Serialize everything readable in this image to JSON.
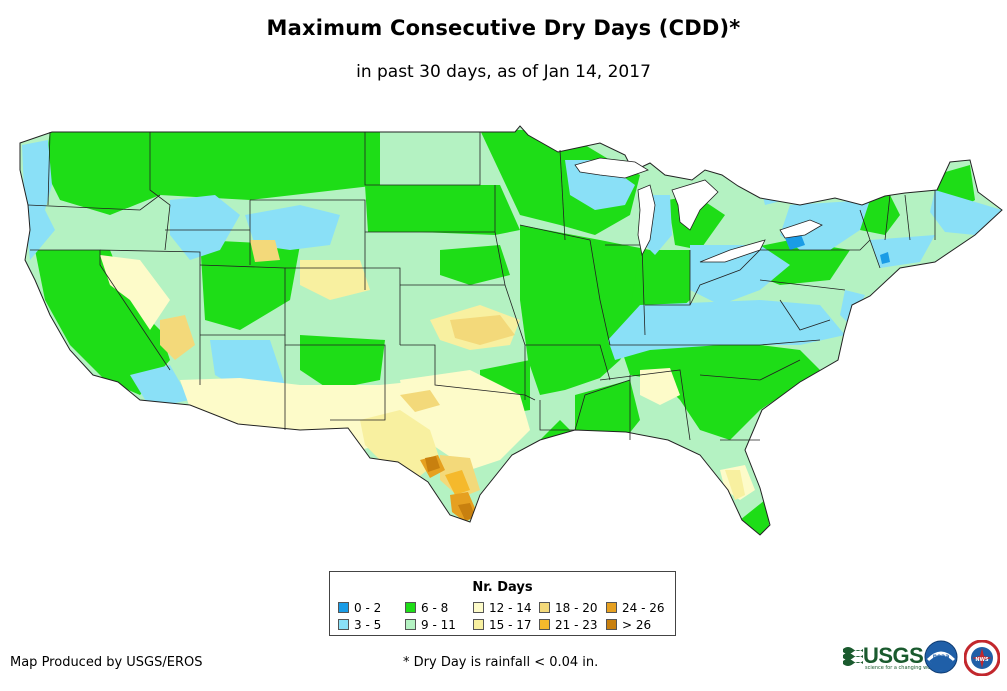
{
  "map": {
    "title": "Maximum Consecutive Dry Days (CDD)*",
    "subtitle": "in past 30 days, as of Jan 14, 2017",
    "region": "Contiguous United States",
    "variable": "Number of consecutive dry days"
  },
  "legend": {
    "title": "Nr. Days",
    "classes": [
      {
        "label": "0 - 2",
        "color": "#1a9ce6"
      },
      {
        "label": "3 - 5",
        "color": "#8ae0f7"
      },
      {
        "label": "6 - 8",
        "color": "#1edd17"
      },
      {
        "label": "9 - 11",
        "color": "#b4f2c2"
      },
      {
        "label": "12 - 14",
        "color": "#fdfbc9"
      },
      {
        "label": "15 - 17",
        "color": "#f8f0a0"
      },
      {
        "label": "18 - 20",
        "color": "#f3d97a"
      },
      {
        "label": "21 - 23",
        "color": "#f5b92c"
      },
      {
        "label": "24 - 26",
        "color": "#e6a020"
      },
      {
        "label": "> 26",
        "color": "#c8800f"
      }
    ]
  },
  "footer": {
    "credit": "Map Produced by USGS/EROS",
    "footnote": "* Dry Day is rainfall < 0.04 in."
  },
  "logos": {
    "usgs": "USGS",
    "usgs_tagline": "science for a changing world",
    "noaa": "noaa",
    "nws": "NWS"
  }
}
